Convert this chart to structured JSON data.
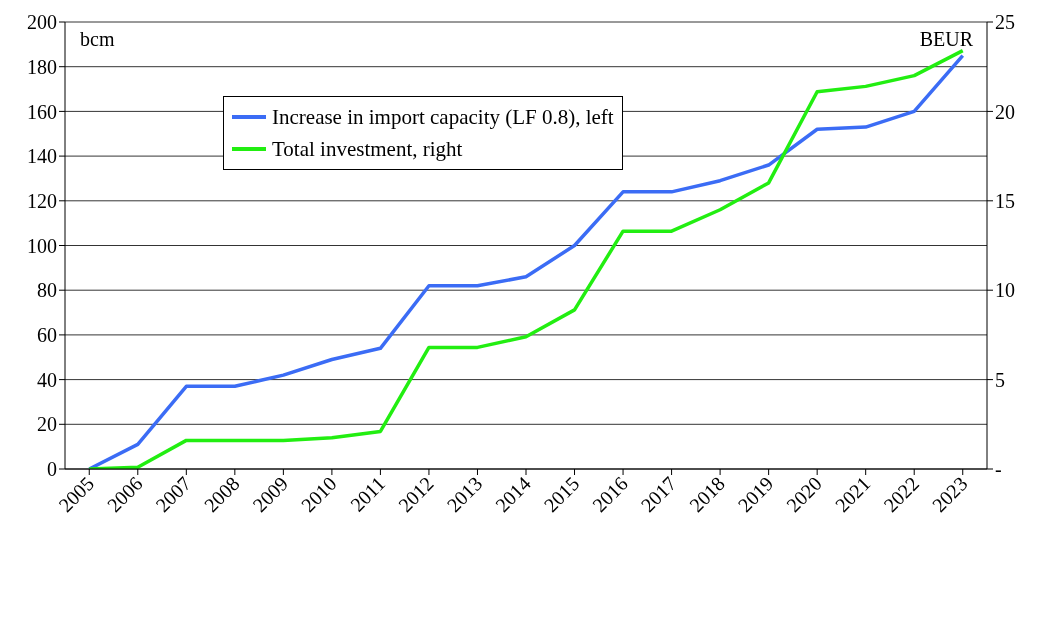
{
  "chart_data": {
    "type": "line",
    "ylabel": "bcm",
    "y2label": "BEUR",
    "categories": [
      "2005",
      "2006",
      "2007",
      "2008",
      "2009",
      "2010",
      "2011",
      "2012",
      "2013",
      "2014",
      "2015",
      "2016",
      "2017",
      "2018",
      "2019",
      "2020",
      "2021",
      "2022",
      "2023"
    ],
    "series": [
      {
        "name": "Increase in import capacity (LF 0.8), left",
        "color": "#3b6cf5",
        "values": [
          0,
          11,
          37,
          37,
          42,
          49,
          54,
          82,
          82,
          86,
          100,
          124,
          124,
          129,
          136,
          152,
          153,
          160,
          185
        ]
      },
      {
        "name": "Total investment, right",
        "color": "#22ee11",
        "axis": "y2",
        "values": [
          0,
          0.1,
          1.6,
          1.6,
          1.6,
          1.75,
          2.1,
          6.8,
          6.8,
          7.4,
          8.9,
          13.3,
          13.3,
          14.5,
          16.0,
          21.1,
          21.4,
          22.0,
          23.4
        ]
      }
    ],
    "ylim": [
      0,
      200
    ],
    "yticks": [
      0,
      20,
      40,
      60,
      80,
      100,
      120,
      140,
      160,
      180,
      200
    ],
    "y2lim": [
      0,
      25
    ],
    "y2ticks": [
      {
        "value": 0,
        "label": "-"
      },
      5,
      10,
      15,
      20,
      25
    ],
    "grid": "y",
    "legend": "top left",
    "marker": "none",
    "line_style": "solid"
  }
}
